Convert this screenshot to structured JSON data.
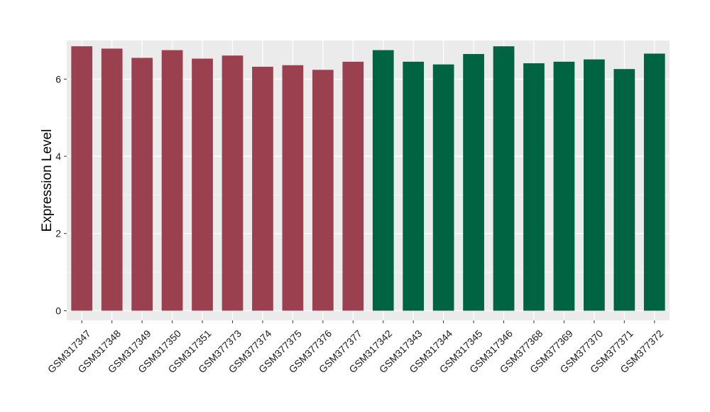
{
  "chart_data": {
    "type": "bar",
    "title": "",
    "xlabel": "",
    "ylabel": "Expression Level",
    "ylim": [
      -0.25,
      7.0
    ],
    "yticks": [
      0,
      2,
      4,
      6
    ],
    "grid": true,
    "legend": "none",
    "categories": [
      "GSM317347",
      "GSM317348",
      "GSM317349",
      "GSM317350",
      "GSM317351",
      "GSM377373",
      "GSM377374",
      "GSM377375",
      "GSM377376",
      "GSM377377",
      "GSM317342",
      "GSM317343",
      "GSM317344",
      "GSM317345",
      "GSM317346",
      "GSM377368",
      "GSM377369",
      "GSM377370",
      "GSM377371",
      "GSM377372"
    ],
    "values": [
      6.85,
      6.79,
      6.55,
      6.75,
      6.53,
      6.61,
      6.32,
      6.36,
      6.24,
      6.45,
      6.75,
      6.45,
      6.38,
      6.65,
      6.85,
      6.41,
      6.45,
      6.51,
      6.26,
      6.66
    ],
    "bar_colors": [
      "#9a404e",
      "#9a404e",
      "#9a404e",
      "#9a404e",
      "#9a404e",
      "#9a404e",
      "#9a404e",
      "#9a404e",
      "#9a404e",
      "#9a404e",
      "#006442",
      "#006442",
      "#006442",
      "#006442",
      "#006442",
      "#006442",
      "#006442",
      "#006442",
      "#006442",
      "#006442"
    ],
    "panel_background": "#ebebeb",
    "grid_color": "#ffffff"
  }
}
